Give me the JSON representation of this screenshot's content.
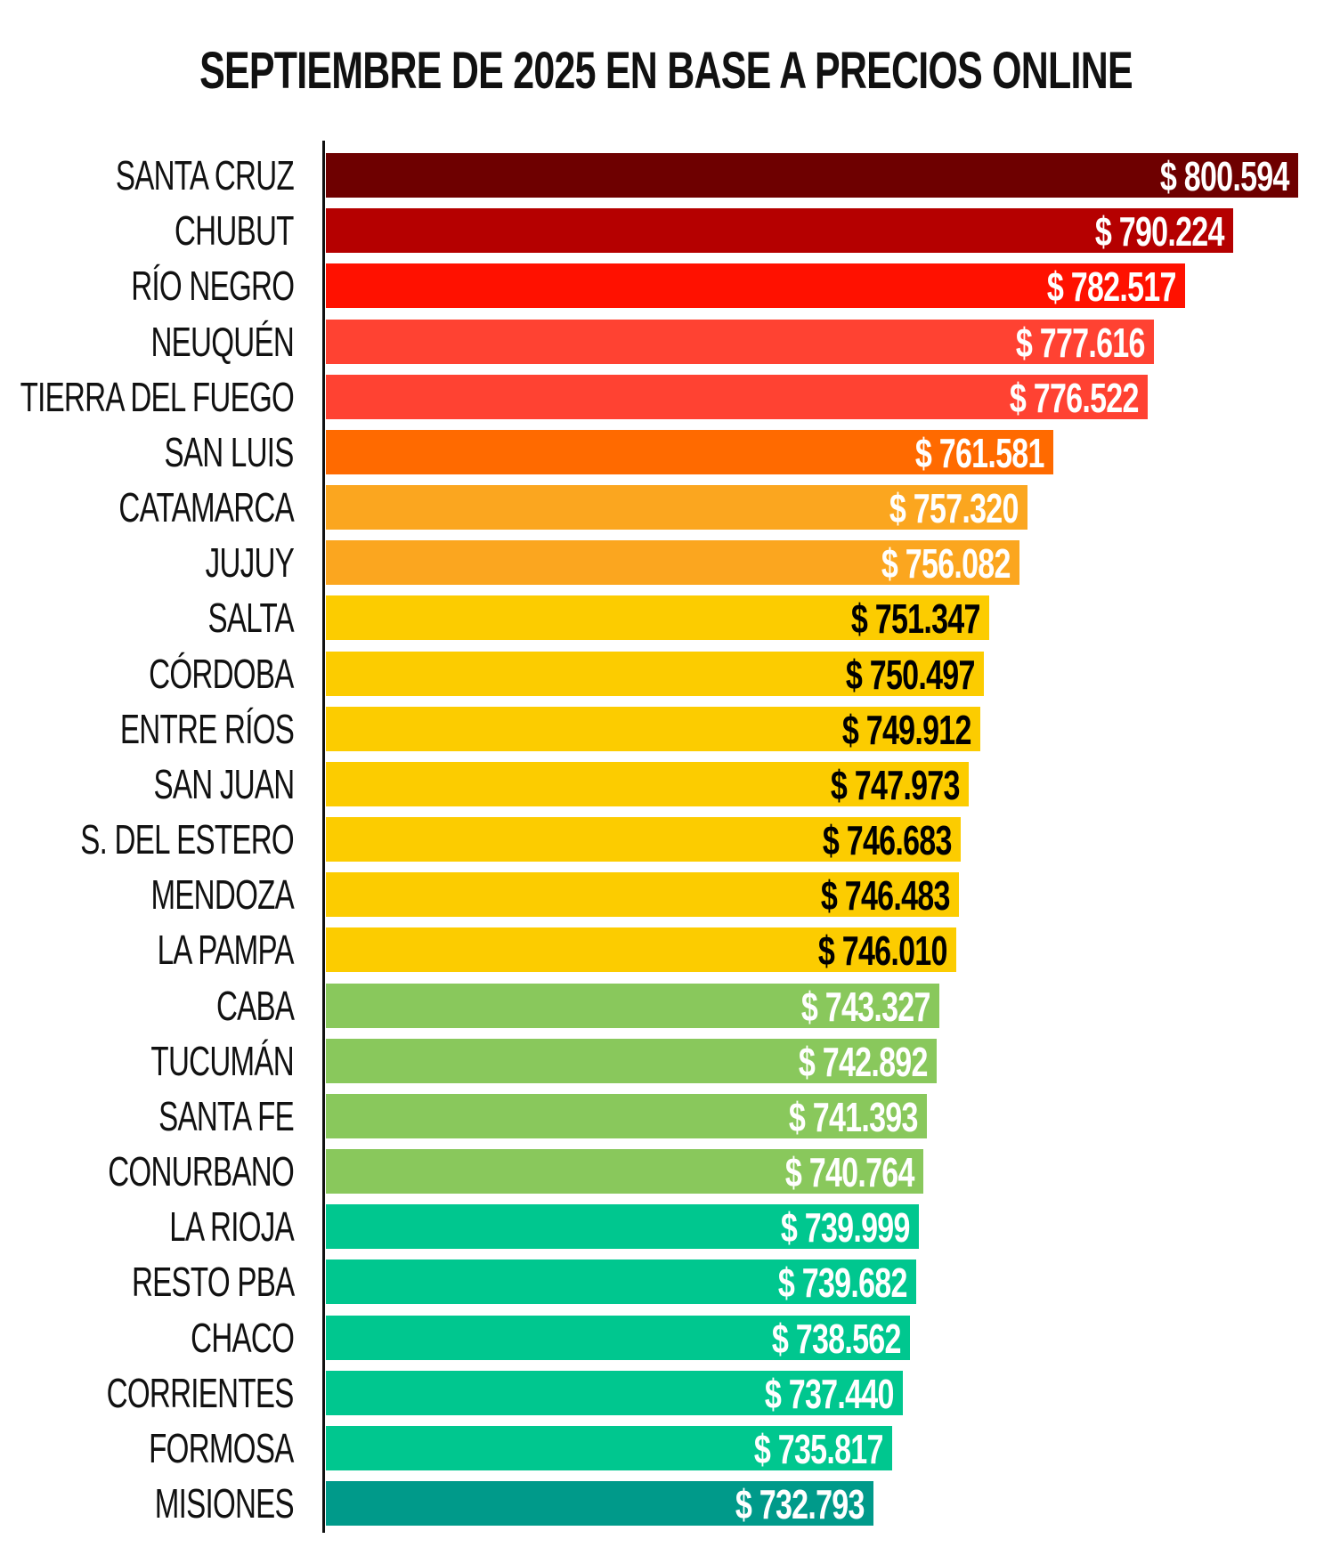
{
  "chart_data": {
    "type": "bar",
    "orientation": "horizontal",
    "title": "SEPTIEMBRE DE 2025 EN BASE A PRECIOS ONLINE",
    "xlim": [
      645400,
      800594
    ],
    "grid": false,
    "categories": [
      "SANTA CRUZ",
      "CHUBUT",
      "RÍO NEGRO",
      "NEUQUÉN",
      "TIERRA DEL FUEGO",
      "SAN LUIS",
      "CATAMARCA",
      "JUJUY",
      "SALTA",
      "CÓRDOBA",
      "ENTRE RÍOS",
      "SAN JUAN",
      "S. DEL ESTERO",
      "MENDOZA",
      "LA PAMPA",
      "CABA",
      "TUCUMÁN",
      "SANTA FE",
      "CONURBANO",
      "LA RIOJA",
      "RESTO PBA",
      "CHACO",
      "CORRIENTES",
      "FORMOSA",
      "MISIONES"
    ],
    "values": [
      800594,
      790224,
      782517,
      777616,
      776522,
      761581,
      757320,
      756082,
      751347,
      750497,
      749912,
      747973,
      746683,
      746483,
      746010,
      743327,
      742892,
      741393,
      740764,
      739999,
      739682,
      738562,
      737440,
      735817,
      732793
    ],
    "data_labels": [
      "$ 800.594",
      "$ 790.224",
      "$ 782.517",
      "$ 777.616",
      "$ 776.522",
      "$ 761.581",
      "$ 757.320",
      "$ 756.082",
      "$ 751.347",
      "$ 750.497",
      "$ 749.912",
      "$ 747.973",
      "$ 746.683",
      "$ 746.483",
      "$ 746.010",
      "$ 743.327",
      "$ 742.892",
      "$ 741.393",
      "$ 740.764",
      "$ 739.999",
      "$ 739.682",
      "$ 738.562",
      "$ 737.440",
      "$ 735.817",
      "$ 732.793"
    ],
    "bar_colors": [
      "#6e0000",
      "#b50000",
      "#ff1100",
      "#ff4232",
      "#ff4232",
      "#ff6a00",
      "#fba61f",
      "#fba61f",
      "#fccc00",
      "#fccc00",
      "#fccc00",
      "#fccc00",
      "#fccc00",
      "#fccc00",
      "#fccc00",
      "#89c85c",
      "#89c85c",
      "#89c85c",
      "#89c85c",
      "#00c78f",
      "#00c78f",
      "#00c78f",
      "#00c78f",
      "#00c78f",
      "#009a8a"
    ],
    "label_colors": [
      "#ffffff",
      "#ffffff",
      "#ffffff",
      "#ffffff",
      "#ffffff",
      "#ffffff",
      "#ffffff",
      "#ffffff",
      "#000000",
      "#000000",
      "#000000",
      "#000000",
      "#000000",
      "#000000",
      "#000000",
      "#ffffff",
      "#ffffff",
      "#ffffff",
      "#ffffff",
      "#ffffff",
      "#ffffff",
      "#ffffff",
      "#ffffff",
      "#ffffff",
      "#ffffff"
    ]
  }
}
